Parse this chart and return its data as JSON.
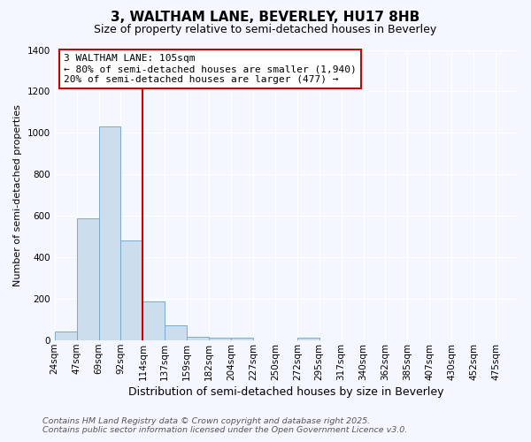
{
  "title": "3, WALTHAM LANE, BEVERLEY, HU17 8HB",
  "subtitle": "Size of property relative to semi-detached houses in Beverley",
  "xlabel": "Distribution of semi-detached houses by size in Beverley",
  "ylabel": "Number of semi-detached properties",
  "footer_line1": "Contains HM Land Registry data © Crown copyright and database right 2025.",
  "footer_line2": "Contains public sector information licensed under the Open Government Licence v3.0.",
  "annotation_line1": "3 WALTHAM LANE: 105sqm",
  "annotation_line2": "← 80% of semi-detached houses are smaller (1,940)",
  "annotation_line3": "20% of semi-detached houses are larger (477) →",
  "property_bin_index": 4,
  "bin_labels": [
    "24sqm",
    "47sqm",
    "69sqm",
    "92sqm",
    "114sqm",
    "137sqm",
    "159sqm",
    "182sqm",
    "204sqm",
    "227sqm",
    "250sqm",
    "272sqm",
    "295sqm",
    "317sqm",
    "340sqm",
    "362sqm",
    "385sqm",
    "407sqm",
    "430sqm",
    "452sqm",
    "475sqm"
  ],
  "counts": [
    45,
    590,
    1030,
    480,
    190,
    72,
    18,
    13,
    13,
    0,
    0,
    15,
    0,
    0,
    0,
    0,
    0,
    0,
    0,
    0,
    0
  ],
  "bar_color": "#ccdded",
  "bar_edge_color": "#7aabcc",
  "red_line_color": "#cc0000",
  "annotation_box_facecolor": "#ffffff",
  "annotation_box_edgecolor": "#cc0000",
  "background_color": "#f4f7ff",
  "grid_color": "#ffffff",
  "ylim": [
    0,
    1400
  ],
  "yticks": [
    0,
    200,
    400,
    600,
    800,
    1000,
    1200,
    1400
  ],
  "title_fontsize": 11,
  "subtitle_fontsize": 9,
  "ylabel_fontsize": 8,
  "xlabel_fontsize": 9,
  "tick_fontsize": 7.5,
  "annotation_fontsize": 8,
  "footer_fontsize": 6.8
}
